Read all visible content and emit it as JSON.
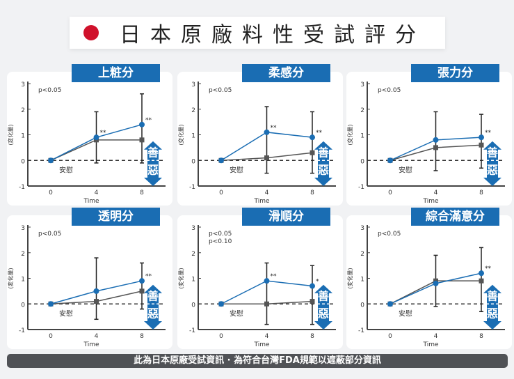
{
  "header": {
    "title": "日本原廠料性受試評分"
  },
  "footer": {
    "text": "此為日本原廠受試資訊 · 為符合台灣FDA規範以遮蔽部分資訊"
  },
  "colors": {
    "treatment": "#1a6db3",
    "placebo": "#555555",
    "banner": "#1a6db3",
    "flag": "#d0112b"
  },
  "chart_data": [
    {
      "type": "line",
      "title": "上粧分",
      "ylabel": "(変化量)",
      "xlabel": "Time",
      "x": [
        0,
        4,
        8
      ],
      "ylim": [
        -1,
        3
      ],
      "yticks": [
        -1,
        0,
        1,
        2,
        3
      ],
      "notes": [
        "p<0.05"
      ],
      "placebo_label": "安慰",
      "better": "善",
      "worse": "惡",
      "series": [
        {
          "values": [
            0,
            0.9,
            1.4
          ],
          "err_high": [
            null,
            1.9,
            2.6
          ],
          "marks": [
            "",
            "**",
            "**"
          ]
        },
        {
          "name": "安慰",
          "values": [
            0,
            0.8,
            0.8
          ],
          "err_low": [
            null,
            -0.1,
            -0.1
          ]
        }
      ]
    },
    {
      "type": "line",
      "title": "柔感分",
      "ylabel": "(変化量)",
      "xlabel": "Time",
      "x": [
        0,
        4,
        8
      ],
      "ylim": [
        -1,
        3
      ],
      "yticks": [
        -1,
        0,
        1,
        2,
        3
      ],
      "notes": [
        "p<0.05"
      ],
      "placebo_label": "安慰",
      "better": "善",
      "worse": "惡",
      "series": [
        {
          "values": [
            0,
            1.1,
            0.9
          ],
          "err_high": [
            null,
            2.1,
            1.9
          ],
          "marks": [
            "",
            "**",
            "**"
          ]
        },
        {
          "name": "安慰",
          "values": [
            0,
            0.1,
            0.3
          ],
          "err_low": [
            null,
            -0.5,
            -0.5
          ]
        }
      ]
    },
    {
      "type": "line",
      "title": "張力分",
      "ylabel": "(変化量)",
      "xlabel": "Time",
      "x": [
        0,
        4,
        8
      ],
      "ylim": [
        -1,
        3
      ],
      "yticks": [
        -1,
        0,
        1,
        2,
        3
      ],
      "notes": [
        "p<0.05"
      ],
      "placebo_label": "安慰",
      "better": "善",
      "worse": "惡",
      "series": [
        {
          "values": [
            0,
            0.8,
            0.9
          ],
          "err_high": [
            null,
            1.9,
            1.8
          ],
          "marks": [
            "",
            "",
            "**"
          ]
        },
        {
          "name": "安慰",
          "values": [
            0,
            0.5,
            0.6
          ],
          "err_low": [
            null,
            -0.4,
            -0.3
          ]
        }
      ]
    },
    {
      "type": "line",
      "title": "透明分",
      "ylabel": "(変化量)",
      "xlabel": "Time",
      "x": [
        0,
        4,
        8
      ],
      "ylim": [
        -1,
        3
      ],
      "yticks": [
        -1,
        0,
        1,
        2,
        3
      ],
      "notes": [
        "p<0.05"
      ],
      "placebo_label": "安慰",
      "better": "善",
      "worse": "惡",
      "series": [
        {
          "values": [
            0,
            0.5,
            0.9
          ],
          "err_high": [
            null,
            1.8,
            1.6
          ],
          "marks": [
            "",
            "",
            "**"
          ]
        },
        {
          "name": "安慰",
          "values": [
            0,
            0.1,
            0.5
          ],
          "err_low": [
            null,
            -0.6,
            -0.2
          ]
        }
      ]
    },
    {
      "type": "line",
      "title": "滑順分",
      "ylabel": "(変化量)",
      "xlabel": "Time",
      "x": [
        0,
        4,
        8
      ],
      "ylim": [
        -1,
        3
      ],
      "yticks": [
        -1,
        0,
        1,
        2,
        3
      ],
      "notes": [
        "p<0.05",
        "p<0.10"
      ],
      "placebo_label": "安慰",
      "better": "善",
      "worse": "惡",
      "series": [
        {
          "values": [
            0,
            0.9,
            0.7
          ],
          "err_high": [
            null,
            1.6,
            1.5
          ],
          "marks": [
            "",
            "**",
            "*"
          ]
        },
        {
          "name": "安慰",
          "values": [
            0,
            0,
            0.1
          ],
          "err_low": [
            null,
            -0.8,
            -0.8
          ]
        }
      ]
    },
    {
      "type": "line",
      "title": "綜合滿意分",
      "ylabel": "(変化量)",
      "xlabel": "Time",
      "x": [
        0,
        4,
        8
      ],
      "ylim": [
        -1,
        3
      ],
      "yticks": [
        -1,
        0,
        1,
        2,
        3
      ],
      "notes": [
        "p<0.05"
      ],
      "placebo_label": "安慰",
      "better": "善",
      "worse": "惡",
      "series": [
        {
          "values": [
            0,
            0.8,
            1.2
          ],
          "err_high": [
            null,
            1.9,
            2.2
          ],
          "marks": [
            "",
            "",
            "**"
          ]
        },
        {
          "name": "安慰",
          "values": [
            0,
            0.9,
            0.9
          ],
          "err_low": [
            null,
            -0.1,
            -0.3
          ]
        }
      ]
    }
  ]
}
